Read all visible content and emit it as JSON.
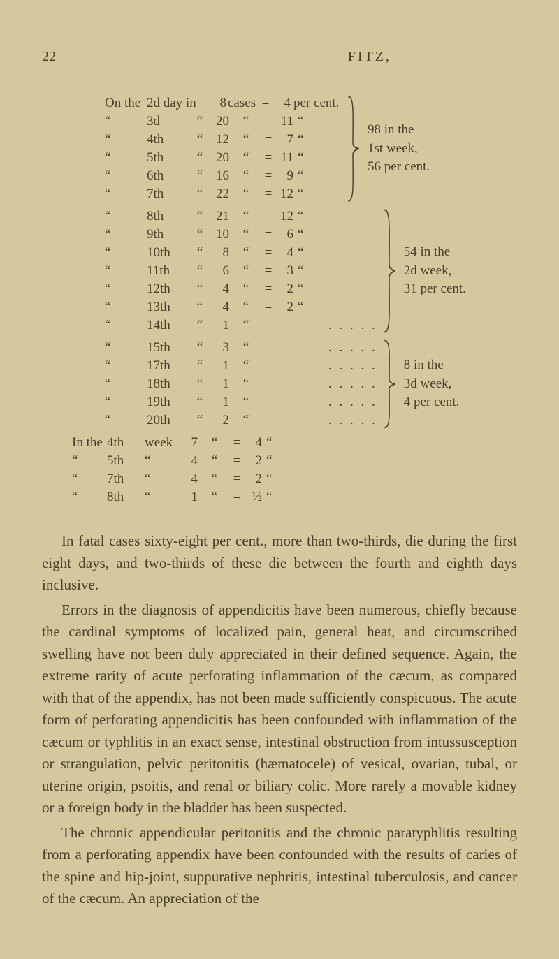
{
  "page_number": "22",
  "running_head": "FITZ,",
  "ditto": "“",
  "equals": "=",
  "groups": [
    {
      "summary": [
        "98 in the",
        "1st week,",
        "56 per cent."
      ],
      "rows": [
        {
          "lead": "On the",
          "day": "2d day in",
          "cases_num": "8",
          "cases_lbl": "cases",
          "eq": "=",
          "val": "4",
          "tail": "per cent."
        },
        {
          "lead": "“",
          "day": "3d",
          "dit": "“",
          "cases_num": "20",
          "cases_lbl": "“",
          "eq": "=",
          "val": "11",
          "tail": "“"
        },
        {
          "lead": "“",
          "day": "4th",
          "dit": "“",
          "cases_num": "12",
          "cases_lbl": "“",
          "eq": "=",
          "val": "7",
          "tail": "“"
        },
        {
          "lead": "“",
          "day": "5th",
          "dit": "“",
          "cases_num": "20",
          "cases_lbl": "“",
          "eq": "=",
          "val": "11",
          "tail": "“"
        },
        {
          "lead": "“",
          "day": "6th",
          "dit": "“",
          "cases_num": "16",
          "cases_lbl": "“",
          "eq": "=",
          "val": "9",
          "tail": "“"
        },
        {
          "lead": "“",
          "day": "7th",
          "dit": "“",
          "cases_num": "22",
          "cases_lbl": "“",
          "eq": "=",
          "val": "12",
          "tail": "“"
        }
      ]
    },
    {
      "summary": [
        "54 in the",
        "2d week,",
        "31 per cent."
      ],
      "rows": [
        {
          "lead": "“",
          "day": "8th",
          "dit": "“",
          "cases_num": "21",
          "cases_lbl": "“",
          "eq": "=",
          "val": "12",
          "tail": "“"
        },
        {
          "lead": "“",
          "day": "9th",
          "dit": "“",
          "cases_num": "10",
          "cases_lbl": "“",
          "eq": "=",
          "val": "6",
          "tail": "“"
        },
        {
          "lead": "“",
          "day": "10th",
          "dit": "“",
          "cases_num": "8",
          "cases_lbl": "“",
          "eq": "=",
          "val": "4",
          "tail": "“"
        },
        {
          "lead": "“",
          "day": "11th",
          "dit": "“",
          "cases_num": "6",
          "cases_lbl": "“",
          "eq": "=",
          "val": "3",
          "tail": "“"
        },
        {
          "lead": "“",
          "day": "12th",
          "dit": "“",
          "cases_num": "4",
          "cases_lbl": "“",
          "eq": "=",
          "val": "2",
          "tail": "“"
        },
        {
          "lead": "“",
          "day": "13th",
          "dit": "“",
          "cases_num": "4",
          "cases_lbl": "“",
          "eq": "=",
          "val": "2",
          "tail": "“"
        },
        {
          "lead": "“",
          "day": "14th",
          "dit": "“",
          "cases_num": "1",
          "cases_lbl": "“",
          "eq": "",
          "val": "",
          "tail": "",
          "dots": true
        }
      ]
    },
    {
      "summary": [
        "8 in the",
        "3d week,",
        "4 per cent."
      ],
      "rows": [
        {
          "lead": "“",
          "day": "15th",
          "dit": "“",
          "cases_num": "3",
          "cases_lbl": "“",
          "eq": "",
          "val": "",
          "tail": "",
          "dots": true
        },
        {
          "lead": "“",
          "day": "17th",
          "dit": "“",
          "cases_num": "1",
          "cases_lbl": "“",
          "eq": "",
          "val": "",
          "tail": "",
          "dots": true
        },
        {
          "lead": "“",
          "day": "18th",
          "dit": "“",
          "cases_num": "1",
          "cases_lbl": "“",
          "eq": "",
          "val": "",
          "tail": "",
          "dots": true
        },
        {
          "lead": "“",
          "day": "19th",
          "dit": "“",
          "cases_num": "1",
          "cases_lbl": "“",
          "eq": "",
          "val": "",
          "tail": "",
          "dots": true
        },
        {
          "lead": "“",
          "day": "20th",
          "dit": "“",
          "cases_num": "2",
          "cases_lbl": "“",
          "eq": "",
          "val": "",
          "tail": "",
          "dots": true
        }
      ]
    }
  ],
  "lower_rows": [
    {
      "lead": "In the",
      "day": "4th",
      "wk": "week",
      "cases_num": "7",
      "cases_lbl": "“",
      "eq": "=",
      "val": "4",
      "tail": "“"
    },
    {
      "lead": "“",
      "day": "5th",
      "wk": "“",
      "cases_num": "4",
      "cases_lbl": "“",
      "eq": "=",
      "val": "2",
      "tail": "“"
    },
    {
      "lead": "“",
      "day": "7th",
      "wk": "“",
      "cases_num": "4",
      "cases_lbl": "“",
      "eq": "=",
      "val": "2",
      "tail": "“"
    },
    {
      "lead": "“",
      "day": "8th",
      "wk": "“",
      "cases_num": "1",
      "cases_lbl": "“",
      "eq": "=",
      "val": "½",
      "tail": "“"
    }
  ],
  "paragraphs": [
    "In fatal cases sixty-eight per cent., more than two-thirds, die during the first eight days, and two-thirds of these die between the fourth and eighth days inclusive.",
    "Errors in the diagnosis of appendicitis have been numerous, chiefly because the cardinal symptoms of localized pain, general heat, and circumscribed swelling have not been duly appreciated in their defined sequence. Again, the extreme rarity of acute perforating inflammation of the cæcum, as compared with that of the appendix, has not been made sufficiently conspicuous. The acute form of perforating appendicitis has been confounded with inflammation of the cæcum or typhlitis in an exact sense, intestinal obstruction from intussusception or strangulation, pelvic peritonitis (hæmatocele) of vesical, ovarian, tubal, or uterine origin, psoitis, and renal or biliary colic. More rarely a movable kidney or a foreign body in the bladder has been suspected.",
    "The chronic appendicular peritonitis and the chronic paratyphlitis resulting from a perforating appendix have been confounded with the results of caries of the spine and hip-joint, suppurative nephritis, intestinal tuberculosis, and cancer of the cæcum. An appreciation of the"
  ]
}
